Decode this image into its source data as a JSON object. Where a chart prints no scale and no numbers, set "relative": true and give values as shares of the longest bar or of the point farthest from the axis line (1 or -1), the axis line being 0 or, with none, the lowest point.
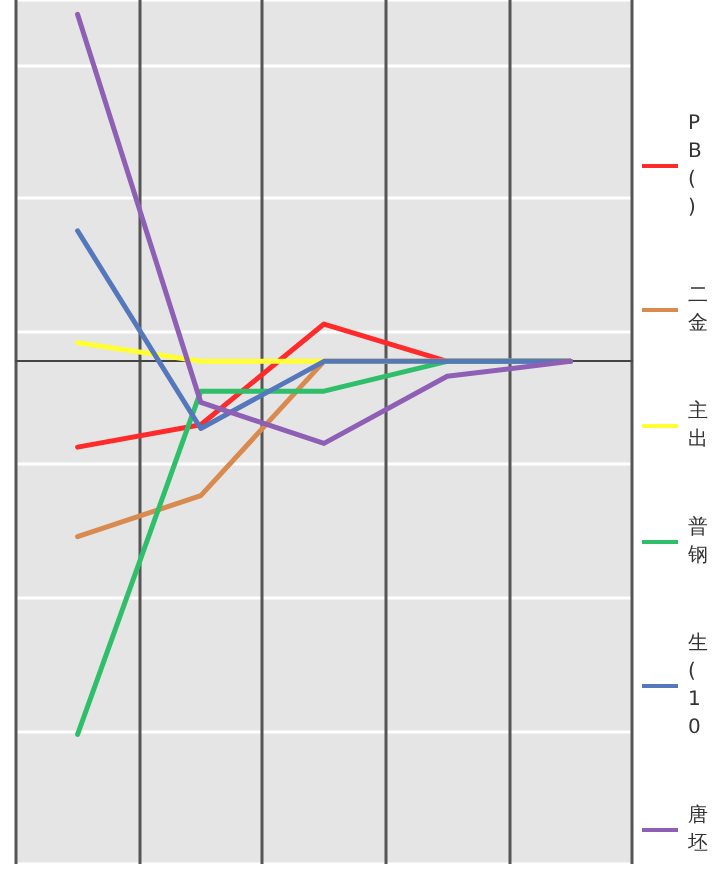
{
  "chart_data": {
    "type": "line",
    "relative": true,
    "categories": [
      null,
      null,
      null,
      null,
      null
    ],
    "series": [
      {
        "name": "PB\n(\n)",
        "color": "#ff2a2a",
        "values": [
          -0.23,
          -0.17,
          0.1,
          0,
          0
        ]
      },
      {
        "name": "二金",
        "color": "#d98a4e",
        "values": [
          -0.47,
          -0.36,
          0,
          0,
          0
        ]
      },
      {
        "name": "主出",
        "color": "#ffff33",
        "values": [
          0.05,
          0,
          0,
          0,
          0
        ]
      },
      {
        "name": "普钢",
        "color": "#2fbf6a",
        "values": [
          -1,
          -0.08,
          -0.08,
          0,
          0
        ]
      },
      {
        "name": "生\n(\n10",
        "color": "#5577bb",
        "values": [
          0.35,
          -0.18,
          0,
          0,
          0
        ]
      },
      {
        "name": "唐坯",
        "color": "#8e5fb5",
        "values": [
          0.93,
          -0.11,
          -0.22,
          -0.04,
          0
        ]
      }
    ],
    "grid": true,
    "legend": "right",
    "marker": "none",
    "line_style": "solid"
  }
}
